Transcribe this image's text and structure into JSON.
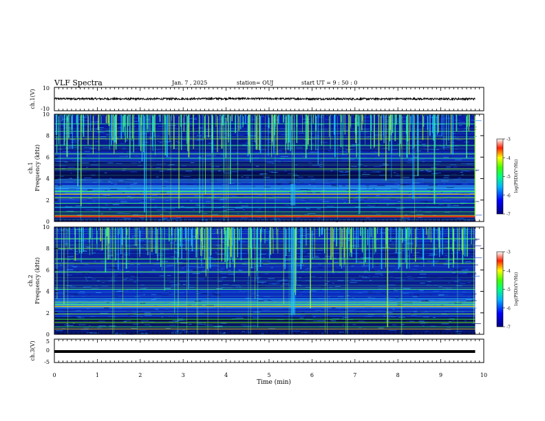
{
  "header": {
    "title": "VLF Spectra",
    "date": "Jan. 7 , 2025",
    "station": "station= OUJ",
    "start": "start UT = 9 : 50 : 0"
  },
  "chart_data": [
    {
      "type": "line",
      "name": "ch1-waveform",
      "ylabel": "ch.1(V)",
      "ylim": [
        -10,
        10
      ],
      "yticks": [
        "10",
        "-10"
      ],
      "x": [
        0,
        1,
        2,
        3,
        4,
        5,
        6,
        7,
        8,
        9,
        9.8
      ],
      "values": [
        0.3,
        0.2,
        0.1,
        0.2,
        0.4,
        0.3,
        0.2,
        0.1,
        0.2,
        0.1,
        0.2
      ]
    },
    {
      "type": "heatmap",
      "name": "ch1-spectrogram",
      "ylabel": "ch.1\nFrequency (kHz)",
      "ylim": [
        0,
        10
      ],
      "yticks": [
        "0",
        "2",
        "4",
        "6",
        "8",
        "10"
      ],
      "colorbar": {
        "label": "log(PSD)(V²/Hz)",
        "range": [
          -7,
          -3
        ],
        "ticks": [
          "-3",
          "-4",
          "-5",
          "-6",
          "-7"
        ]
      }
    },
    {
      "type": "heatmap",
      "name": "ch2-spectrogram",
      "ylabel": "ch.2\nFrequency (kHz)",
      "ylim": [
        0,
        10
      ],
      "yticks": [
        "0",
        "2",
        "4",
        "6",
        "8",
        "10"
      ],
      "colorbar": {
        "label": "log(PSD)(V²/Hz)",
        "range": [
          -7,
          -3
        ],
        "ticks": [
          "-3",
          "-4",
          "-5",
          "-6",
          "-7"
        ]
      }
    },
    {
      "type": "line",
      "name": "ch3-waveform",
      "ylabel": "ch.3(V)",
      "ylim": [
        -5,
        5
      ],
      "yticks": [
        "5",
        "0",
        "-5"
      ],
      "x": [
        0,
        9.8
      ],
      "values": [
        0.5,
        0.5
      ]
    }
  ],
  "xaxis": {
    "label": "Time (min)",
    "ticks": [
      "0",
      "1",
      "2",
      "3",
      "4",
      "5",
      "6",
      "7",
      "8",
      "9",
      "10"
    ],
    "xlim": [
      0,
      10
    ]
  }
}
